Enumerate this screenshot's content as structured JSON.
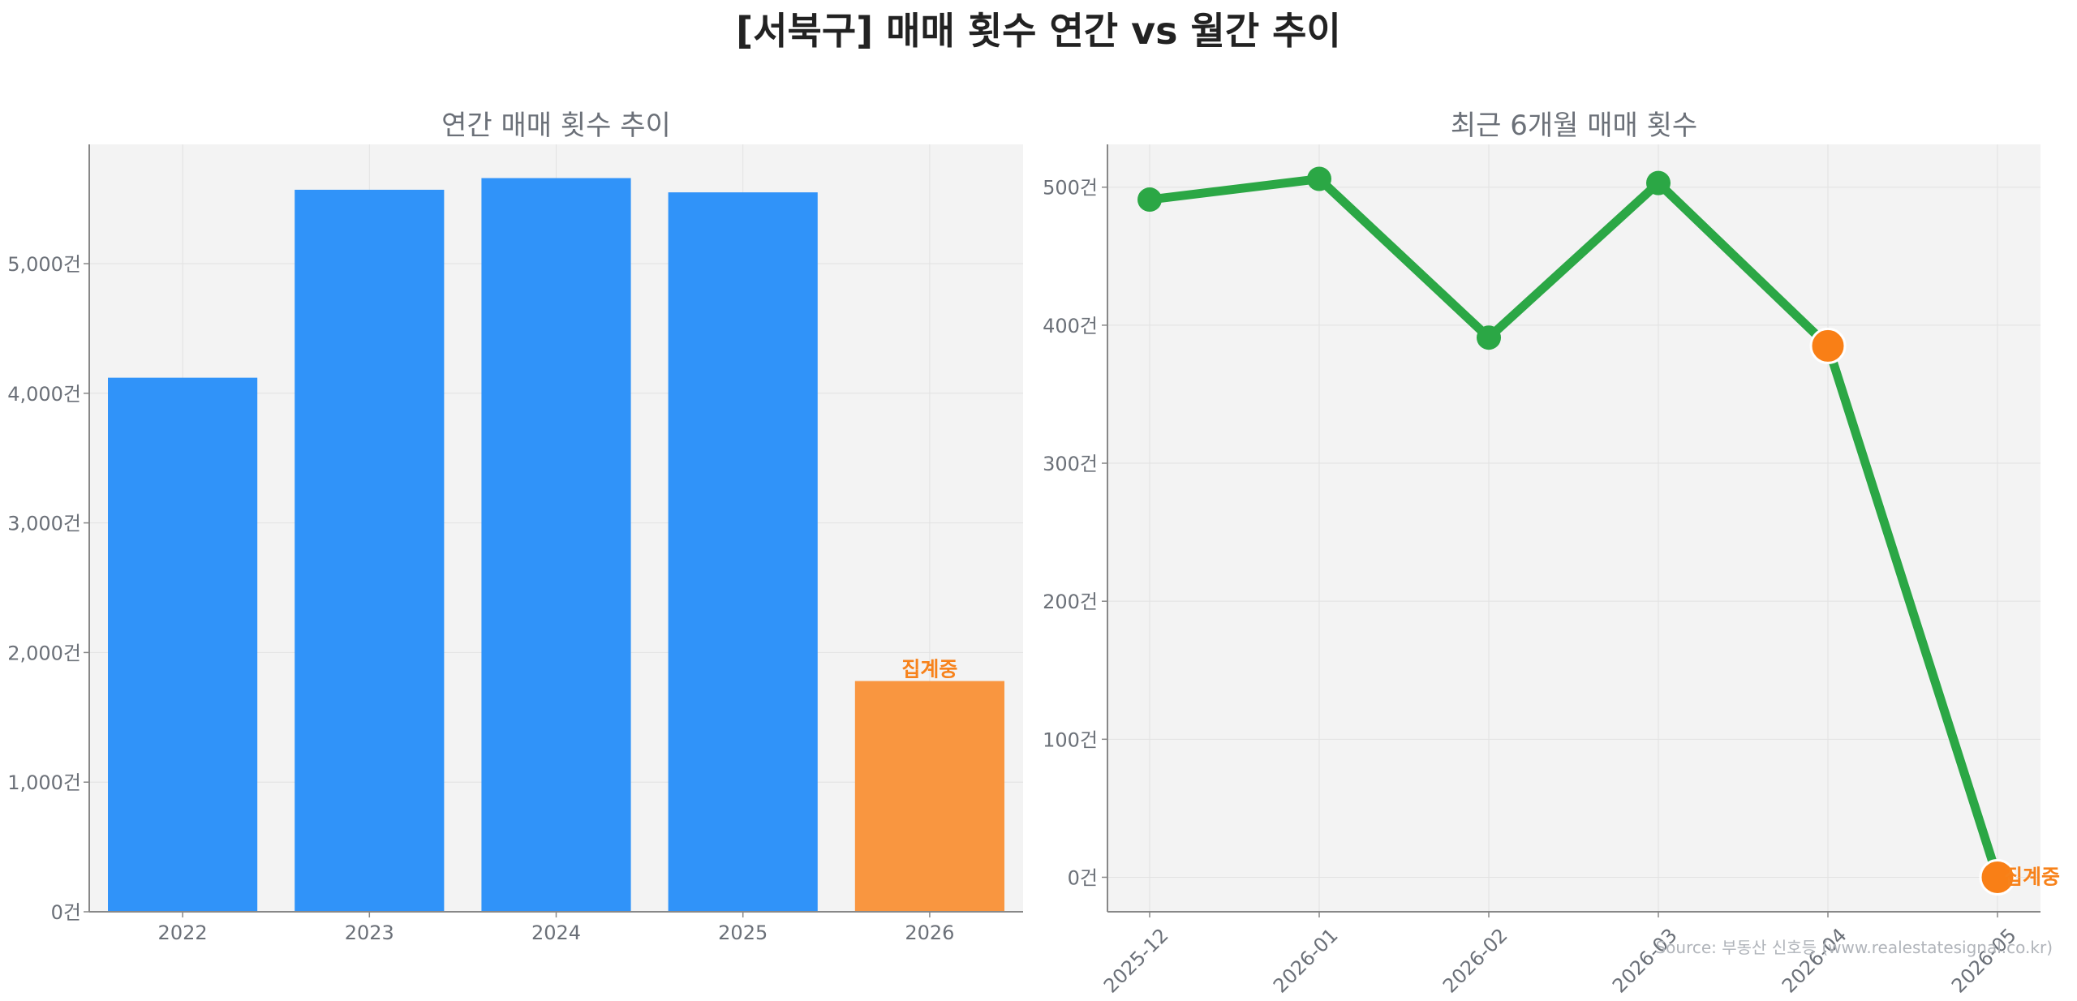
{
  "title": "[서북구] 매매 횟수 연간 vs 월간 추이",
  "colors": {
    "bar": "#3093f9",
    "bar_partial": "#f99640",
    "line": "#2ba745",
    "point_partial": "#f97f16",
    "partial_label": "#f7821b",
    "panel_bg": "#f3f3f3"
  },
  "source": "Source: 부동산 신호등 (www.realestatesignal.co.kr)",
  "chart_data": [
    {
      "type": "bar",
      "title": "연간 매매 횟수 추이",
      "categories": [
        "2022",
        "2023",
        "2024",
        "2025",
        "2026"
      ],
      "values": [
        4120,
        5570,
        5660,
        5550,
        1780
      ],
      "partial_index": 4,
      "partial_label": "집계중",
      "ylim": [
        0,
        5920
      ],
      "yticks": [
        0,
        1000,
        2000,
        3000,
        4000,
        5000
      ],
      "ytick_labels": [
        "0건",
        "1,000건",
        "2,000건",
        "3,000건",
        "4,000건",
        "5,000건"
      ],
      "grid": true
    },
    {
      "type": "line",
      "title": "최근 6개월 매매 횟수",
      "categories": [
        "2025-12",
        "2026-01",
        "2026-02",
        "2026-03",
        "2026-04",
        "2026-05"
      ],
      "values": [
        491,
        506,
        391,
        503,
        385,
        0
      ],
      "partial_indices": [
        4,
        5
      ],
      "partial_label": "집계중",
      "ylim": [
        -25,
        531
      ],
      "yticks": [
        0,
        100,
        200,
        300,
        400,
        500
      ],
      "ytick_labels": [
        "0건",
        "100건",
        "200건",
        "300건",
        "400건",
        "500건"
      ],
      "grid": true
    }
  ]
}
